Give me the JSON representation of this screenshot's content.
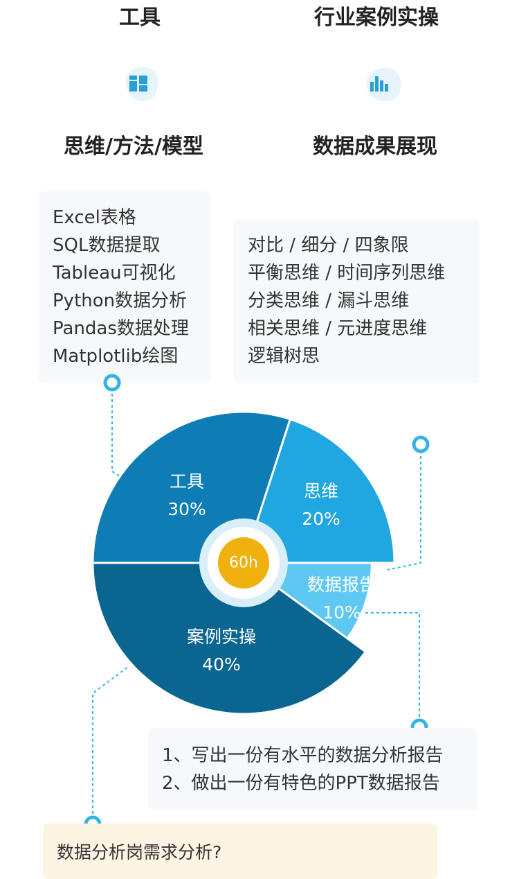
{
  "headings": {
    "tools": "工具",
    "industry_practice": "行业案例实操",
    "thinking_methods": "思维/方法/模型",
    "data_presentation": "数据成果展现"
  },
  "icons": {
    "left": "dashboard-grid-icon",
    "right": "bar-chart-icon",
    "color": "#2a9ed8",
    "bg": "#e6f4fb"
  },
  "tools_card": {
    "items": [
      "Excel表格",
      "SQL数据提取",
      "Tableau可视化",
      "Python数据分析",
      "Pandas数据处理",
      "Matplotlib绘图"
    ]
  },
  "thinking_card": {
    "items": [
      "对比 / 细分 / 四象限",
      "平衡思维 / 时间序列思维",
      "分类思维 / 漏斗思维",
      "相关思维 / 元进度思维",
      "逻辑树思"
    ]
  },
  "report_card": {
    "items": [
      "1、写出一份有水平的数据分析报告",
      "2、做出一份有特色的PPT数据报告"
    ]
  },
  "bottom_card": {
    "text": "数据分析岗需求分析?"
  },
  "chart_data": {
    "type": "pie",
    "center_label": "60h",
    "slices": [
      {
        "name": "工具",
        "label": "30%",
        "value": 30,
        "color": "#0f7db5"
      },
      {
        "name": "思维",
        "label": "20%",
        "value": 20,
        "color": "#20a6e0"
      },
      {
        "name": "数据报告",
        "label": "10%",
        "value": 10,
        "color": "#5ec8f2"
      },
      {
        "name": "案例实操",
        "label": "40%",
        "value": 40,
        "color": "#0a6591"
      }
    ],
    "center_color": "#f0b10f",
    "center_ring_color": "#d8eef8",
    "connector_color": "#35b3e6"
  }
}
